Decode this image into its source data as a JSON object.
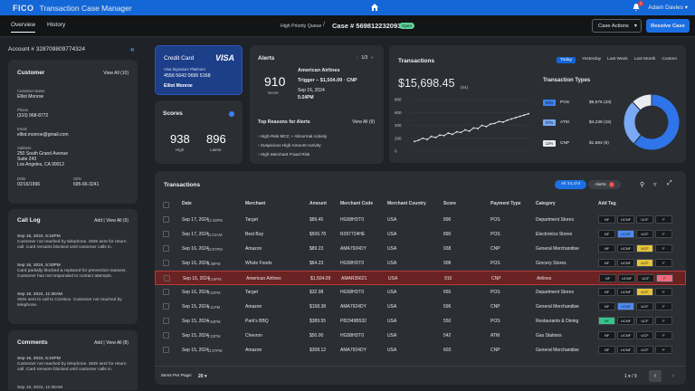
{
  "header": {
    "logo": "FICO",
    "title": "Transaction Case Manager",
    "user": "Adam Davies",
    "notif_count": "2"
  },
  "nav": {
    "tabs": [
      "Overview",
      "History"
    ],
    "queue": "High Priority Queue",
    "sep": "/",
    "case": "Case # 569812232093",
    "status": "Open",
    "actions": "Case Actions",
    "resolve": "Resolve Case"
  },
  "account": {
    "title": "Account # 328709809774324"
  },
  "customer": {
    "title": "Customer",
    "view_all": "View All (10)",
    "name_label": "Customer Name",
    "name": "Elliot Monroe",
    "phone_label": "Phone",
    "phone": "(310) 968-8772",
    "email_label": "Email",
    "email": "elliot.monroe@gmail.com",
    "address_label": "Address",
    "address1": "250 South Grand Avenue",
    "address2": "Suite 243",
    "address3": "Los Angeles, CA 90012",
    "dob_label": "DOB",
    "dob": "02/16/1996",
    "ssn_label": "SSN",
    "ssn": "695-66-3241"
  },
  "calllog": {
    "title": "Call Log",
    "add": "Add",
    "view_all": "View All (9)",
    "notes": [
      {
        "ts": "Sep 16, 2024, 5:24PM",
        "text": "Customer not reached by telephone. SMS sent for return call. Card remains blocked until customer calls in."
      },
      {
        "ts": "Sep 16, 2024, 5:20PM",
        "text": "Card partially blocked & replaced for prevention reasons. Customer has not responded to contact attempts."
      },
      {
        "ts": "Sep 16, 2024, 11:35AM",
        "text": "SMS sent to call to Combox. Customer not reached by telephone."
      }
    ]
  },
  "comments": {
    "title": "Comments",
    "add": "Add",
    "view_all": "View All (8)",
    "notes": [
      {
        "ts": "Sep 16, 2024, 5:24PM",
        "text": "Customer not reached by telephone. SMS sent for return call. Card remains blocked until customer calls in."
      }
    ],
    "cut_ts": "Sep 16, 2024, 11:35AM"
  },
  "card": {
    "title": "Credit Card",
    "brand": "VISA",
    "product": "Visa Signature Platinum",
    "number": "4556 5642 0695 5168",
    "holder": "Elliot Monroe"
  },
  "scores": {
    "title": "Scores",
    "high": "938",
    "high_label": "High",
    "latest": "896",
    "latest_label": "Latest"
  },
  "alerts": {
    "title": "Alerts",
    "pager": "1/3",
    "score": "910",
    "score_label": "Score",
    "merchant": "American Airlines",
    "trigger": "Trigger – $1,504.09 · CNP",
    "date": "Sep 16, 2024",
    "time": "5:24PM",
    "reasons_title": "Top Reasons for Alerts",
    "reasons_link": "View All (9)",
    "reasons": [
      "High-Risk MCC + Abnormal Activity",
      "Suspicious High Amount Activity",
      "High Merchant Fraud Risk"
    ]
  },
  "txsummary": {
    "title": "Transactions",
    "periods": [
      "Today",
      "Yesterday",
      "Last Week",
      "Last Month",
      "Custom"
    ],
    "total": "$15,698.45",
    "total_count": "(54)",
    "types_title": "Transaction Types",
    "types": [
      {
        "pct": "61%",
        "name": "POS",
        "amount": "$9,576 (33)",
        "color": "#3b82f0"
      },
      {
        "pct": "27%",
        "name": "ATM",
        "amount": "$4,238 (15)",
        "color": "#7aa9f5"
      },
      {
        "pct": "12%",
        "name": "CNP",
        "amount": "$1,884 (6)",
        "color": "#e9edf2"
      }
    ]
  },
  "chart_data": {
    "type": "line",
    "yticks": [
      "800",
      "600",
      "400",
      "200",
      "0"
    ],
    "ylim": [
      0,
      800
    ],
    "values": [
      150,
      170,
      200,
      180,
      230,
      210,
      250,
      240,
      280,
      260,
      300,
      290,
      330,
      310,
      360,
      350,
      400,
      380,
      420,
      430,
      460,
      450,
      480,
      500,
      520,
      540,
      560,
      580
    ]
  },
  "donut_data": {
    "type": "pie",
    "values": [
      61,
      27,
      12
    ],
    "colors": [
      "#2f74e8",
      "#7aa9f5",
      "#e9edf2"
    ]
  },
  "table": {
    "title": "Transactions",
    "seg_all": "All 34,474",
    "seg_alerts": "Alerts",
    "seg_alerts_count": "3",
    "headers": [
      "Date",
      "Merchant",
      "Amount",
      "Merchant Code",
      "Merchant Country",
      "Score",
      "Payment Type",
      "Category",
      "Add Tag"
    ],
    "tag_labels": [
      "NF",
      "UCNF",
      "UCF",
      "F"
    ],
    "rows": [
      [
        "Sep 17, 2024",
        "12:43PM",
        "Target",
        "$89.45",
        "HG58HDT0",
        "USA",
        "896",
        "POS",
        "Department Stores",
        "",
        "",
        ""
      ],
      [
        "Sep 17, 2024",
        "11:01AM",
        "Best Buy",
        "$506.78",
        "R297724HE",
        "USA",
        "890",
        "POS",
        "Electronics Stores",
        "blue",
        "",
        ""
      ],
      [
        "Sep 16, 2024",
        "10:57PM",
        "Amazon",
        "$89.23",
        "AMA7924DY",
        "USA",
        "938",
        "CNP",
        "General Merchandise",
        "yellow",
        "",
        ""
      ],
      [
        "Sep 16, 2024",
        "6:38PM",
        "Whole Foods",
        "$64.23",
        "HG58HDT0",
        "USA",
        "908",
        "POS",
        "Grocery Stores",
        "yellow",
        "",
        ""
      ],
      [
        "Sep 16, 2024",
        "5:24PM",
        "American Airlines",
        "$1,504.09",
        "AMAR35621",
        "USA",
        "910",
        "CNP",
        "Airlines",
        "red",
        "flag",
        ""
      ],
      [
        "Sep 16, 2024",
        "2:01PM",
        "Target",
        "$32.98",
        "HG58HDT0",
        "USA",
        "650",
        "POS",
        "Department Stores",
        "yellow",
        "",
        ""
      ],
      [
        "Sep 15, 2024",
        "9:11PM",
        "Amazon",
        "$158.38",
        "AMA7924DY",
        "USA",
        "596",
        "CNP",
        "General Merchandise",
        "blue",
        "",
        ""
      ],
      [
        "Sep 15, 2024",
        "7:54PM",
        "Park's BBQ",
        "$389.55",
        "P82349B532",
        "USA",
        "550",
        "POS",
        "Restaurants & Dining",
        "green",
        "",
        ""
      ],
      [
        "Sep 15, 2024",
        "4:22PM",
        "Chevron",
        "$50.00",
        "HG58HDT0",
        "USA",
        "542",
        "ATM",
        "Gas Stations",
        "",
        "",
        ""
      ],
      [
        "Sep 15, 2024",
        "11:07PM",
        "Amazon",
        "$308.12",
        "AMA7924DY",
        "USA",
        "603",
        "CNP",
        "General Merchandise",
        "",
        "",
        ""
      ]
    ],
    "per_page_label": "Items Per Page:",
    "per_page": "20",
    "page": "1",
    "of": "/ 9"
  }
}
